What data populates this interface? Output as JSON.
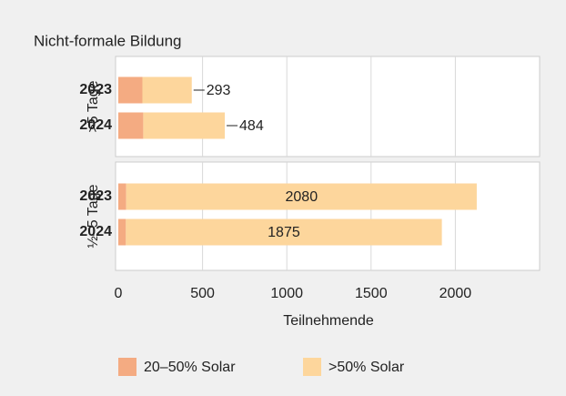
{
  "chart_data": {
    "type": "bar",
    "orientation": "horizontal",
    "stacked": true,
    "title": "Nicht-formale Bildung",
    "x_label": "Teilnehmende",
    "facets": [
      ">5 Tage",
      "½–5 Tage"
    ],
    "categories": [
      "2023",
      "2024"
    ],
    "series": [
      {
        "name": "20–50% Solar",
        "color": "#f4ab82",
        "values": [
          [
            143,
            148
          ],
          [
            47,
            45
          ]
        ]
      },
      {
        "name": ">50% Solar",
        "color": "#fdd69c",
        "values": [
          [
            293,
            484
          ],
          [
            2080,
            1875
          ]
        ]
      }
    ],
    "xlim": [
      0,
      2500
    ],
    "xticks": [
      0,
      500,
      1000,
      1500,
      2000
    ],
    "grid": true
  }
}
